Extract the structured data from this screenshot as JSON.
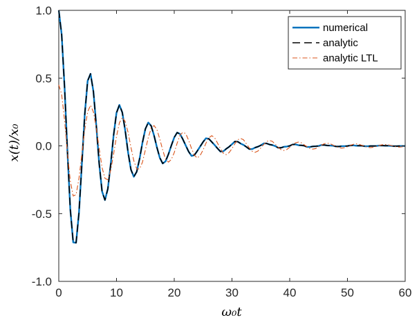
{
  "chart_data": {
    "type": "line",
    "xlabel": "ω₀t",
    "ylabel": "x(t)/x₀",
    "xlim": [
      0,
      60
    ],
    "ylim": [
      -1.0,
      1.0
    ],
    "x_ticks": [
      "0",
      "10",
      "20",
      "30",
      "40",
      "50",
      "60"
    ],
    "x_tick_values": [
      0,
      10,
      20,
      30,
      40,
      50,
      60
    ],
    "y_ticks": [
      "-1.0",
      "-0.5",
      "0.0",
      "0.5",
      "1.0"
    ],
    "y_tick_values": [
      -1.0,
      -0.5,
      0.0,
      0.5,
      1.0
    ],
    "grid": false,
    "legend_position": "top-right",
    "series": [
      {
        "name": "numerical",
        "style": "solid",
        "color": "#0072BD",
        "x": [
          0,
          0.5,
          1.0,
          1.5,
          2.0,
          2.5,
          3.0,
          3.5,
          4.0,
          4.5,
          5.0,
          5.5,
          6.0,
          6.5,
          7.0,
          7.5,
          8.0,
          8.5,
          9.0,
          9.5,
          10.0,
          10.5,
          11.0,
          11.5,
          12.0,
          12.5,
          13.0,
          13.5,
          14.0,
          14.5,
          15.0,
          15.5,
          16.0,
          16.5,
          17.0,
          17.5,
          18.0,
          18.5,
          19.0,
          19.5,
          20.0,
          20.5,
          21.0,
          21.5,
          22.0,
          22.5,
          23.0,
          23.5,
          24.0,
          24.5,
          25.0,
          25.5,
          26.0,
          26.5,
          27.0,
          27.5,
          28.0,
          28.5,
          29.0,
          29.5,
          30.0,
          30.5,
          31.0,
          31.5,
          32.0,
          32.5,
          33.0,
          33.5,
          34.0,
          34.5,
          35.0,
          35.5,
          36.0,
          36.5,
          37.0,
          37.5,
          38.0,
          38.5,
          39.0,
          39.5,
          40.0,
          40.5,
          41.0,
          41.5,
          42.0,
          42.5,
          43.0,
          43.5,
          44.0,
          44.5,
          45.0,
          45.5,
          46.0,
          46.5,
          47.0,
          47.5,
          48.0,
          48.5,
          49.0,
          49.5,
          50.0,
          50.5,
          51.0,
          51.5,
          52.0,
          52.5,
          53.0,
          53.5,
          54.0,
          54.5,
          55.0,
          55.5,
          56.0,
          56.5,
          57.0,
          57.5,
          58.0,
          58.5,
          59.0,
          59.5,
          60.0
        ],
        "y": [
          1.0,
          0.822,
          0.437,
          -0.042,
          -0.47,
          -0.712,
          -0.715,
          -0.494,
          -0.134,
          0.231,
          0.479,
          0.532,
          0.402,
          0.149,
          -0.131,
          -0.336,
          -0.4,
          -0.317,
          -0.134,
          0.079,
          0.244,
          0.302,
          0.247,
          0.115,
          -0.047,
          -0.175,
          -0.228,
          -0.191,
          -0.095,
          0.025,
          0.125,
          0.172,
          0.148,
          0.077,
          -0.011,
          -0.088,
          -0.13,
          -0.114,
          -0.061,
          0.003,
          0.062,
          0.098,
          0.088,
          0.048,
          0.002,
          -0.043,
          -0.074,
          -0.068,
          -0.037,
          -0.004,
          0.029,
          0.056,
          0.052,
          0.029,
          0.006,
          -0.019,
          -0.042,
          -0.04,
          -0.022,
          -0.007,
          0.012,
          0.032,
          0.031,
          0.017,
          0.007,
          -0.008,
          -0.024,
          -0.024,
          -0.013,
          -0.006,
          0.004,
          0.018,
          0.018,
          0.01,
          0.006,
          -0.002,
          -0.014,
          -0.014,
          -0.007,
          -0.005,
          0.0,
          0.01,
          0.011,
          0.005,
          0.004,
          0.001,
          -0.008,
          -0.008,
          -0.004,
          -0.003,
          -0.001,
          0.006,
          0.006,
          0.003,
          0.002,
          0.001,
          -0.004,
          -0.005,
          -0.002,
          -0.002,
          -0.001,
          0.003,
          0.004,
          0.001,
          0.001,
          0.001,
          -0.003,
          -0.003,
          -0.001,
          -0.001,
          -0.001,
          0.002,
          0.002,
          0.001,
          0.001,
          0.0,
          -0.002,
          -0.002,
          -0.001,
          -0.001,
          -0.001
        ]
      },
      {
        "name": "analytic",
        "style": "dashed",
        "color": "#000000",
        "x": [
          0,
          0.5,
          1.0,
          1.5,
          2.0,
          2.5,
          3.0,
          3.5,
          4.0,
          4.5,
          5.0,
          5.5,
          6.0,
          6.5,
          7.0,
          7.5,
          8.0,
          8.5,
          9.0,
          9.5,
          10.0,
          10.5,
          11.0,
          11.5,
          12.0,
          12.5,
          13.0,
          13.5,
          14.0,
          14.5,
          15.0,
          15.5,
          16.0,
          16.5,
          17.0,
          17.5,
          18.0,
          18.5,
          19.0,
          19.5,
          20.0,
          20.5,
          21.0,
          21.5,
          22.0,
          22.5,
          23.0,
          23.5,
          24.0,
          24.5,
          25.0,
          25.5,
          26.0,
          26.5,
          27.0,
          27.5,
          28.0,
          28.5,
          29.0,
          29.5,
          30.0,
          30.5,
          31.0,
          31.5,
          32.0,
          32.5,
          33.0,
          33.5,
          34.0,
          34.5,
          35.0,
          35.5,
          36.0,
          36.5,
          37.0,
          37.5,
          38.0,
          38.5,
          39.0,
          39.5,
          40.0,
          40.5,
          41.0,
          41.5,
          42.0,
          42.5,
          43.0,
          43.5,
          44.0,
          44.5,
          45.0,
          45.5,
          46.0,
          46.5,
          47.0,
          47.5,
          48.0,
          48.5,
          49.0,
          49.5,
          50.0,
          50.5,
          51.0,
          51.5,
          52.0,
          52.5,
          53.0,
          53.5,
          54.0,
          54.5,
          55.0,
          55.5,
          56.0,
          56.5,
          57.0,
          57.5,
          58.0,
          58.5,
          59.0,
          59.5,
          60.0
        ],
        "y": [
          1.0,
          0.822,
          0.437,
          -0.042,
          -0.47,
          -0.712,
          -0.715,
          -0.494,
          -0.134,
          0.231,
          0.479,
          0.532,
          0.402,
          0.149,
          -0.131,
          -0.336,
          -0.4,
          -0.317,
          -0.134,
          0.079,
          0.244,
          0.302,
          0.247,
          0.115,
          -0.047,
          -0.175,
          -0.228,
          -0.191,
          -0.095,
          0.025,
          0.125,
          0.172,
          0.148,
          0.077,
          -0.011,
          -0.088,
          -0.13,
          -0.114,
          -0.061,
          0.003,
          0.062,
          0.098,
          0.088,
          0.048,
          0.002,
          -0.043,
          -0.074,
          -0.068,
          -0.037,
          -0.004,
          0.029,
          0.056,
          0.052,
          0.029,
          0.006,
          -0.019,
          -0.042,
          -0.04,
          -0.022,
          -0.007,
          0.012,
          0.032,
          0.031,
          0.017,
          0.007,
          -0.008,
          -0.024,
          -0.024,
          -0.013,
          -0.006,
          0.004,
          0.018,
          0.018,
          0.01,
          0.006,
          -0.002,
          -0.014,
          -0.014,
          -0.007,
          -0.005,
          0.0,
          0.01,
          0.011,
          0.005,
          0.004,
          0.001,
          -0.008,
          -0.008,
          -0.004,
          -0.003,
          -0.001,
          0.006,
          0.006,
          0.003,
          0.002,
          0.001,
          -0.004,
          -0.005,
          -0.002,
          -0.002,
          -0.001,
          0.003,
          0.004,
          0.001,
          0.001,
          0.001,
          -0.003,
          -0.003,
          -0.001,
          -0.001,
          -0.001,
          0.002,
          0.002,
          0.001,
          0.001,
          0.0,
          -0.002,
          -0.002,
          -0.001,
          -0.001,
          -0.001
        ]
      },
      {
        "name": "analytic LTL",
        "style": "dashdot",
        "color": "#D95319",
        "x": [
          0,
          0.5,
          1.0,
          1.5,
          2.0,
          2.5,
          3.0,
          3.5,
          4.0,
          4.5,
          5.0,
          5.5,
          6.0,
          6.5,
          7.0,
          7.5,
          8.0,
          8.5,
          9.0,
          9.5,
          10.0,
          10.5,
          11.0,
          11.5,
          12.0,
          12.5,
          13.0,
          13.5,
          14.0,
          14.5,
          15.0,
          15.5,
          16.0,
          16.5,
          17.0,
          17.5,
          18.0,
          18.5,
          19.0,
          19.5,
          20.0,
          20.5,
          21.0,
          21.5,
          22.0,
          22.5,
          23.0,
          23.5,
          24.0,
          24.5,
          25.0,
          25.5,
          26.0,
          26.5,
          27.0,
          27.5,
          28.0,
          28.5,
          29.0,
          29.5,
          30.0,
          30.5,
          31.0,
          31.5,
          32.0,
          32.5,
          33.0,
          33.5,
          34.0,
          34.5,
          35.0,
          35.5,
          36.0,
          36.5,
          37.0,
          37.5,
          38.0,
          38.5,
          39.0,
          39.5,
          40.0,
          40.5,
          41.0,
          41.5,
          42.0,
          42.5,
          43.0,
          43.5,
          44.0,
          44.5,
          45.0,
          45.5,
          46.0,
          46.5,
          47.0,
          47.5,
          48.0,
          48.5,
          49.0,
          49.5,
          50.0,
          50.5,
          51.0,
          51.5,
          52.0,
          52.5,
          53.0,
          53.5,
          54.0,
          54.5,
          55.0,
          55.5,
          56.0,
          56.5,
          57.0,
          57.5,
          58.0,
          58.5,
          59.0,
          59.5,
          60.0
        ],
        "y": [
          0.45,
          0.38,
          0.19,
          -0.05,
          -0.26,
          -0.37,
          -0.36,
          -0.24,
          -0.06,
          0.12,
          0.25,
          0.3,
          0.25,
          0.13,
          -0.02,
          -0.16,
          -0.24,
          -0.25,
          -0.18,
          -0.06,
          0.07,
          0.17,
          0.21,
          0.18,
          0.1,
          -0.01,
          -0.11,
          -0.17,
          -0.17,
          -0.12,
          -0.03,
          0.06,
          0.13,
          0.15,
          0.12,
          0.05,
          -0.03,
          -0.1,
          -0.12,
          -0.1,
          -0.05,
          0.02,
          0.08,
          0.1,
          0.09,
          0.04,
          -0.02,
          -0.07,
          -0.09,
          -0.07,
          -0.03,
          0.02,
          0.06,
          0.075,
          0.06,
          0.02,
          -0.02,
          -0.055,
          -0.065,
          -0.05,
          -0.02,
          0.015,
          0.045,
          0.055,
          0.045,
          0.015,
          -0.015,
          -0.04,
          -0.048,
          -0.038,
          -0.015,
          0.01,
          0.032,
          0.04,
          0.033,
          0.012,
          -0.01,
          -0.028,
          -0.034,
          -0.027,
          -0.01,
          0.008,
          0.022,
          0.028,
          0.023,
          0.008,
          -0.007,
          -0.019,
          -0.024,
          -0.02,
          -0.008,
          0.005,
          0.016,
          0.02,
          0.016,
          0.006,
          -0.005,
          -0.013,
          -0.017,
          -0.014,
          -0.006,
          0.004,
          0.011,
          0.015,
          0.012,
          0.004,
          -0.004,
          -0.01,
          -0.013,
          -0.01,
          -0.004,
          0.003,
          0.008,
          0.01,
          0.008,
          0.003,
          -0.003,
          -0.007,
          -0.009,
          -0.007,
          -0.003
        ]
      }
    ]
  }
}
